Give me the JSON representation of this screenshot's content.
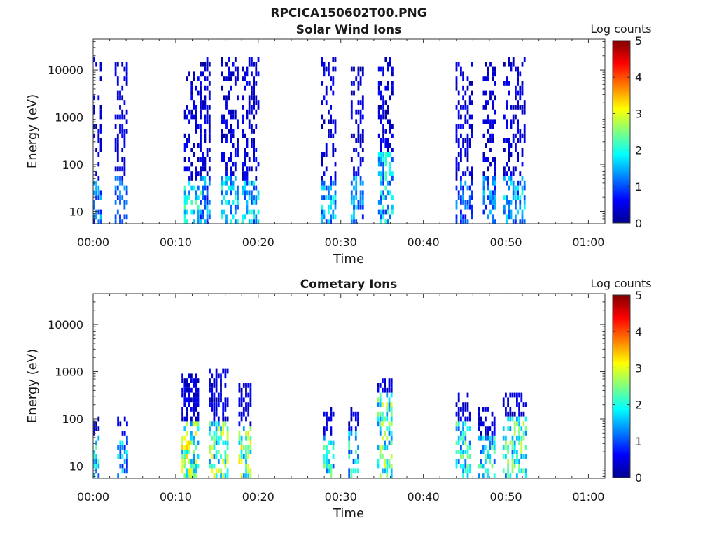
{
  "title": "RPCICA150602T00.PNG",
  "chart_data": [
    {
      "type": "heatmap",
      "title": "Solar Wind Ions",
      "xlabel": "Time",
      "ylabel": "Energy (eV)",
      "y_scale": "log",
      "ylim": [
        5.5,
        45000
      ],
      "xlim_minutes": [
        0,
        62
      ],
      "x_tick_labels": [
        "00:00",
        "00:10",
        "00:20",
        "00:30",
        "00:40",
        "00:50",
        "01:00"
      ],
      "x_tick_minutes": [
        0,
        10,
        20,
        30,
        40,
        50,
        60
      ],
      "y_tick_labels": [
        "10",
        "100",
        "1000",
        "10000"
      ],
      "y_tick_values": [
        10,
        100,
        1000,
        10000
      ],
      "colorbar": {
        "label": "Log counts",
        "ticks": [
          "0",
          "1",
          "2",
          "3",
          "4",
          "5"
        ],
        "range": [
          0,
          5
        ],
        "colormap": "jet"
      },
      "bursts": [
        {
          "start": 0.0,
          "end": 0.9,
          "emax": 15000,
          "low": 1.4,
          "low_top": 40,
          "dense": 0.3
        },
        {
          "start": 2.6,
          "end": 4.1,
          "emax": 12000,
          "low": 1.3,
          "low_top": 60,
          "dense": 0.4
        },
        {
          "start": 11.0,
          "end": 12.9,
          "emax": 8000,
          "low": 2.0,
          "low_top": 45,
          "dense": 0.35
        },
        {
          "start": 12.9,
          "end": 14.1,
          "emax": 20000,
          "low": 1.5,
          "low_top": 60,
          "dense": 0.4
        },
        {
          "start": 15.5,
          "end": 17.4,
          "emax": 17000,
          "low": 1.9,
          "low_top": 50,
          "dense": 0.4
        },
        {
          "start": 18.0,
          "end": 20.1,
          "emax": 16000,
          "low": 1.8,
          "low_top": 45,
          "dense": 0.4
        },
        {
          "start": 27.6,
          "end": 29.4,
          "emax": 18000,
          "low": 1.7,
          "low_top": 40,
          "dense": 0.35
        },
        {
          "start": 31.2,
          "end": 32.6,
          "emax": 10000,
          "low": 1.5,
          "low_top": 60,
          "dense": 0.4
        },
        {
          "start": 34.5,
          "end": 36.2,
          "emax": 16000,
          "low": 1.9,
          "low_top": 180,
          "dense": 0.4
        },
        {
          "start": 43.9,
          "end": 45.9,
          "emax": 14000,
          "low": 1.3,
          "low_top": 40,
          "dense": 0.4
        },
        {
          "start": 47.2,
          "end": 48.6,
          "emax": 14000,
          "low": 1.4,
          "low_top": 60,
          "dense": 0.4
        },
        {
          "start": 49.7,
          "end": 52.3,
          "emax": 15000,
          "low": 1.7,
          "low_top": 50,
          "dense": 0.4
        }
      ]
    },
    {
      "type": "heatmap",
      "title": "Cometary Ions",
      "xlabel": "Time",
      "ylabel": "Energy (eV)",
      "y_scale": "log",
      "ylim": [
        5.5,
        45000
      ],
      "xlim_minutes": [
        0,
        62
      ],
      "x_tick_labels": [
        "00:00",
        "00:10",
        "00:20",
        "00:30",
        "00:40",
        "00:50",
        "01:00"
      ],
      "x_tick_minutes": [
        0,
        10,
        20,
        30,
        40,
        50,
        60
      ],
      "y_tick_labels": [
        "10",
        "100",
        "1000",
        "10000"
      ],
      "y_tick_values": [
        10,
        100,
        1000,
        10000
      ],
      "colorbar": {
        "label": "Log counts",
        "ticks": [
          "0",
          "1",
          "2",
          "3",
          "4",
          "5"
        ],
        "range": [
          0,
          5
        ],
        "colormap": "jet"
      },
      "bursts": [
        {
          "start": 0.0,
          "end": 0.8,
          "emax": 100,
          "low": 2.0,
          "low_top": 40,
          "dense": 0.5
        },
        {
          "start": 2.9,
          "end": 4.0,
          "emax": 90,
          "low": 1.7,
          "low_top": 40,
          "dense": 0.5
        },
        {
          "start": 10.7,
          "end": 12.6,
          "emax": 900,
          "low": 2.9,
          "low_top": 90,
          "dense": 0.6
        },
        {
          "start": 14.0,
          "end": 16.2,
          "emax": 1000,
          "low": 2.7,
          "low_top": 90,
          "dense": 0.6
        },
        {
          "start": 17.6,
          "end": 19.0,
          "emax": 500,
          "low": 2.8,
          "low_top": 70,
          "dense": 0.6
        },
        {
          "start": 27.9,
          "end": 29.2,
          "emax": 150,
          "low": 2.2,
          "low_top": 40,
          "dense": 0.5
        },
        {
          "start": 30.9,
          "end": 32.2,
          "emax": 150,
          "low": 2.0,
          "low_top": 50,
          "dense": 0.5
        },
        {
          "start": 34.4,
          "end": 36.2,
          "emax": 600,
          "low": 2.5,
          "low_top": 400,
          "dense": 0.6
        },
        {
          "start": 43.9,
          "end": 45.6,
          "emax": 300,
          "low": 2.2,
          "low_top": 80,
          "dense": 0.55
        },
        {
          "start": 46.6,
          "end": 48.7,
          "emax": 150,
          "low": 2.1,
          "low_top": 40,
          "dense": 0.45
        },
        {
          "start": 49.6,
          "end": 52.4,
          "emax": 300,
          "low": 2.4,
          "low_top": 120,
          "dense": 0.55
        }
      ]
    }
  ]
}
